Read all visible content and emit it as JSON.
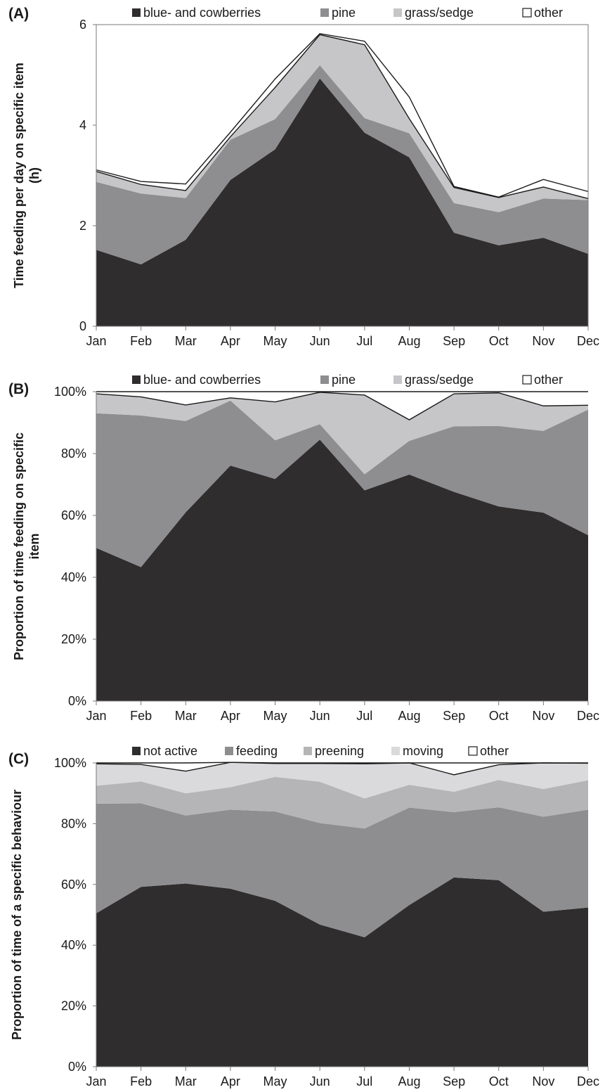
{
  "months": [
    "Jan",
    "Feb",
    "Mar",
    "Apr",
    "May",
    "Jun",
    "Jul",
    "Aug",
    "Sep",
    "Oct",
    "Nov",
    "Dec"
  ],
  "chart_data": [
    {
      "panel_label": "(A)",
      "type": "area",
      "stacked": true,
      "ylabel_lines": [
        "Time feeding per day on specific item",
        "(h)"
      ],
      "ylim": [
        0,
        6
      ],
      "yticks": [
        0,
        2,
        4,
        6
      ],
      "ytick_labels": [
        "0",
        "2",
        "4",
        "6"
      ],
      "legend_position": "top",
      "series": [
        {
          "name": "blue- and cowberries",
          "color": "#302d2e",
          "values": [
            1.52,
            1.23,
            1.72,
            2.91,
            3.52,
            4.93,
            3.85,
            3.36,
            1.86,
            1.61,
            1.76,
            1.44
          ]
        },
        {
          "name": "pine",
          "color": "#8e8e90",
          "values": [
            1.35,
            1.41,
            0.83,
            0.8,
            0.6,
            0.26,
            0.29,
            0.48,
            0.59,
            0.66,
            0.78,
            1.07
          ]
        },
        {
          "name": "grass/sedge",
          "color": "#c6c6c8",
          "values": [
            0.21,
            0.18,
            0.15,
            0.06,
            0.63,
            0.61,
            1.46,
            0.29,
            0.31,
            0.29,
            0.23,
            0.03
          ]
        },
        {
          "name": "other",
          "color": "#ffffff",
          "values": [
            0.03,
            0.06,
            0.13,
            0.09,
            0.17,
            0.02,
            0.07,
            0.43,
            0.02,
            0.01,
            0.15,
            0.14
          ]
        }
      ]
    },
    {
      "panel_label": "(B)",
      "type": "area",
      "stacked": true,
      "ylabel_lines": [
        "Proportion of time feeding on specific",
        "item"
      ],
      "ylim": [
        0,
        100
      ],
      "yticks": [
        0,
        20,
        40,
        60,
        80,
        100
      ],
      "ytick_labels": [
        "0%",
        "20%",
        "40%",
        "60%",
        "80%",
        "100%"
      ],
      "legend_position": "top",
      "series": [
        {
          "name": "blue- and cowberries",
          "color": "#302d2e",
          "values": [
            49.5,
            43.3,
            61.0,
            76.1,
            71.8,
            84.5,
            68.1,
            73.2,
            67.6,
            62.9,
            60.9,
            53.6
          ]
        },
        {
          "name": "pine",
          "color": "#8e8e90",
          "values": [
            43.5,
            49.0,
            29.5,
            21.0,
            12.5,
            5.0,
            5.2,
            10.9,
            21.2,
            26.0,
            26.4,
            40.6
          ]
        },
        {
          "name": "grass/sedge",
          "color": "#c6c6c8",
          "values": [
            6.3,
            6.0,
            5.2,
            0.9,
            12.4,
            10.3,
            25.6,
            6.8,
            10.5,
            10.7,
            8.1,
            1.4
          ]
        },
        {
          "name": "other",
          "color": "#ffffff",
          "values": [
            0.7,
            1.7,
            4.3,
            2.0,
            3.3,
            0.2,
            1.1,
            9.1,
            0.7,
            0.4,
            4.6,
            4.4
          ]
        }
      ]
    },
    {
      "panel_label": "(C)",
      "type": "area",
      "stacked": true,
      "ylabel_lines": [
        "Proportion of time of a specific behaviour"
      ],
      "ylim": [
        0,
        100
      ],
      "yticks": [
        0,
        20,
        40,
        60,
        80,
        100
      ],
      "ytick_labels": [
        "0%",
        "20%",
        "40%",
        "60%",
        "80%",
        "100%"
      ],
      "legend_position": "top",
      "series": [
        {
          "name": "not active",
          "color": "#302d2e",
          "values": [
            50.5,
            59.2,
            60.3,
            58.6,
            54.6,
            46.8,
            42.6,
            53.2,
            62.3,
            61.4,
            51.0,
            52.4
          ]
        },
        {
          "name": "feeding",
          "color": "#8e8e90",
          "values": [
            36.1,
            27.5,
            22.4,
            26.0,
            29.4,
            33.4,
            35.8,
            32.1,
            21.5,
            24.0,
            31.3,
            32.2
          ]
        },
        {
          "name": "preening",
          "color": "#b5b5b7",
          "values": [
            5.9,
            7.2,
            7.3,
            7.4,
            11.4,
            13.6,
            9.9,
            7.5,
            6.7,
            9.0,
            9.1,
            9.7
          ]
        },
        {
          "name": "moving",
          "color": "#dadadc",
          "values": [
            7.2,
            5.6,
            7.3,
            8.2,
            4.4,
            6.0,
            11.4,
            7.2,
            5.6,
            5.0,
            8.6,
            5.6
          ]
        },
        {
          "name": "other",
          "color": "#ffffff",
          "values": [
            0.3,
            0.5,
            2.7,
            0.0,
            0.2,
            0.2,
            0.3,
            0.0,
            3.9,
            0.6,
            0.0,
            0.1
          ]
        }
      ]
    }
  ]
}
